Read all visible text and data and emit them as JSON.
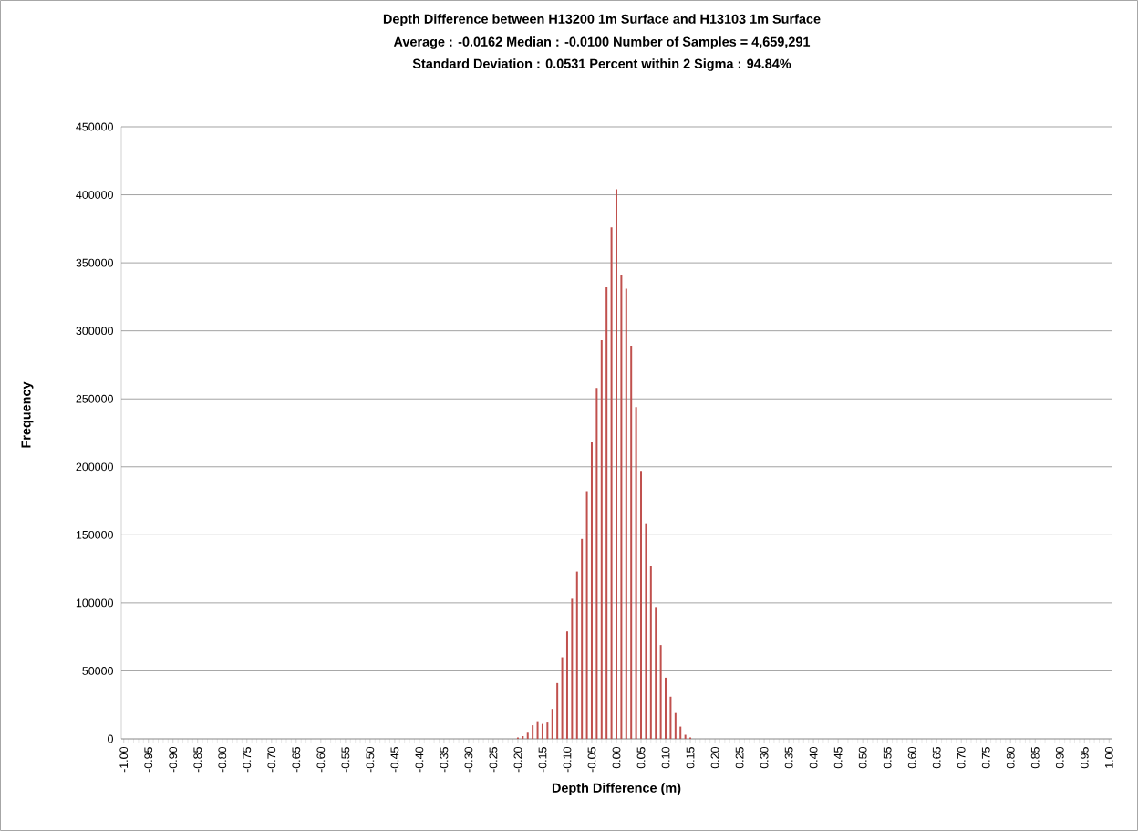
{
  "chart_data": {
    "type": "bar",
    "title": "Depth Difference between H13200 1m Surface and H13103 1m Surface",
    "subtitle": "Average : -0.0162   Median : -0.0100   Number of Samples = 4,659,291",
    "annotations": [
      "Standard Deviation : 0.0531   Percent within 2 Sigma : 94.84%"
    ],
    "xlabel": "Depth Difference (m)",
    "ylabel": "Frequency",
    "categories": [
      "-1.00",
      null,
      null,
      null,
      null,
      "-0.95",
      null,
      null,
      null,
      null,
      "-0.90",
      null,
      null,
      null,
      null,
      "-0.85",
      null,
      null,
      null,
      null,
      "-0.80",
      null,
      null,
      null,
      null,
      "-0.75",
      null,
      null,
      null,
      null,
      "-0.70",
      null,
      null,
      null,
      null,
      "-0.65",
      null,
      null,
      null,
      null,
      "-0.60",
      null,
      null,
      null,
      null,
      "-0.55",
      null,
      null,
      null,
      null,
      "-0.50",
      null,
      null,
      null,
      null,
      "-0.45",
      null,
      null,
      null,
      null,
      "-0.40",
      null,
      null,
      null,
      null,
      "-0.35",
      null,
      null,
      null,
      null,
      "-0.30",
      null,
      null,
      null,
      null,
      "-0.25",
      null,
      null,
      null,
      null,
      "-0.20",
      null,
      null,
      null,
      null,
      "-0.15",
      null,
      null,
      null,
      null,
      "-0.10",
      null,
      null,
      null,
      null,
      "-0.05",
      null,
      null,
      null,
      null,
      "0.00",
      null,
      null,
      null,
      null,
      "0.05",
      null,
      null,
      null,
      null,
      "0.10",
      null,
      null,
      null,
      null,
      "0.15",
      null,
      null,
      null,
      null,
      "0.20",
      null,
      null,
      null,
      null,
      "0.25",
      null,
      null,
      null,
      null,
      "0.30",
      null,
      null,
      null,
      null,
      "0.35",
      null,
      null,
      null,
      null,
      "0.40",
      null,
      null,
      null,
      null,
      "0.45",
      null,
      null,
      null,
      null,
      "0.50",
      null,
      null,
      null,
      null,
      "0.55",
      null,
      null,
      null,
      null,
      "0.60",
      null,
      null,
      null,
      null,
      "0.65",
      null,
      null,
      null,
      null,
      "0.70",
      null,
      null,
      null,
      null,
      "0.75",
      null,
      null,
      null,
      null,
      "0.80",
      null,
      null,
      null,
      null,
      "0.85",
      null,
      null,
      null,
      null,
      "0.90",
      null,
      null,
      null,
      null,
      "0.95",
      null,
      null,
      null,
      null,
      "1.00"
    ],
    "values": [
      0,
      0,
      0,
      0,
      0,
      0,
      0,
      0,
      0,
      0,
      0,
      0,
      0,
      0,
      0,
      0,
      0,
      0,
      0,
      0,
      0,
      0,
      0,
      0,
      0,
      0,
      0,
      0,
      0,
      0,
      0,
      0,
      0,
      0,
      0,
      0,
      0,
      0,
      0,
      0,
      0,
      0,
      0,
      0,
      0,
      0,
      0,
      0,
      0,
      0,
      0,
      0,
      0,
      0,
      0,
      0,
      0,
      0,
      0,
      0,
      0,
      0,
      0,
      0,
      0,
      0,
      0,
      0,
      0,
      0,
      0,
      0,
      0,
      0,
      0,
      0,
      0,
      0,
      0,
      0,
      1000,
      2000,
      4500,
      10000,
      13000,
      11000,
      12000,
      22000,
      41000,
      60000,
      79000,
      103000,
      123000,
      147000,
      182000,
      218000,
      258000,
      293000,
      332000,
      376000,
      404000,
      341000,
      331000,
      289000,
      244000,
      197000,
      158500,
      127000,
      97000,
      69000,
      45000,
      31000,
      19000,
      9000,
      3000,
      1000,
      0,
      0,
      0,
      0,
      0,
      0,
      0,
      0,
      0,
      0,
      0,
      0,
      0,
      0,
      0,
      0,
      0,
      0,
      0,
      0,
      0,
      0,
      0,
      0,
      0,
      0,
      0,
      0,
      0,
      0,
      0,
      0,
      0,
      0,
      0,
      0,
      0,
      0,
      0,
      0,
      0,
      0,
      0,
      0,
      0,
      0,
      0,
      0,
      0,
      0,
      0,
      0,
      0,
      0,
      0,
      0,
      0,
      0,
      0,
      0,
      0,
      0,
      0,
      0,
      0,
      0,
      0,
      0,
      0,
      0,
      0,
      0,
      0,
      0,
      0,
      0,
      0,
      0,
      0,
      0,
      0,
      0,
      0,
      0,
      0
    ],
    "color": "#c0504d",
    "ylim": [
      0,
      450000
    ],
    "yticks": [
      0,
      50000,
      100000,
      150000,
      200000,
      250000,
      300000,
      350000,
      400000,
      450000
    ],
    "grid": "y"
  }
}
